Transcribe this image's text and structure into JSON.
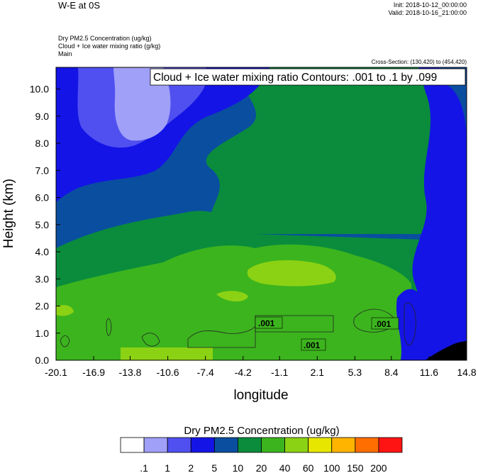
{
  "header": {
    "title": "W-E at 0S",
    "init": "Init: 2018-10-12_00:00:00",
    "valid": "Valid: 2018-10-16_21:00:00",
    "field1": "Dry PM2.5 Concentration   (ug/kg)",
    "field2": "Cloud + Ice water mixing ratio   (g/kg)",
    "field3": "Main",
    "cross_section": "Cross-Section: (130,420) to (454,420)"
  },
  "chart_data": {
    "type": "heatmap",
    "title": "W-E at 0S",
    "xlabel": "longitude",
    "ylabel": "Height (km)",
    "x_ticks": [
      "-20.1",
      "-16.9",
      "-13.8",
      "-10.6",
      "-7.4",
      "-4.2",
      "-1.1",
      "2.1",
      "5.3",
      "8.4",
      "11.6",
      "14.8"
    ],
    "y_ticks": [
      "0.0",
      "1.0",
      "2.0",
      "3.0",
      "4.0",
      "5.0",
      "6.0",
      "7.0",
      "8.0",
      "9.0",
      "10.0"
    ],
    "xlim": [
      -20.1,
      14.8
    ],
    "ylim": [
      0,
      10.8
    ],
    "contour_title": "Cloud + Ice water mixing ratio Contours: .001 to .1 by .099",
    "contour_labels": [
      ".001",
      ".001",
      ".001"
    ],
    "colorbar_title": "Dry PM2.5 Concentration  (ug/kg)",
    "colorbar_levels": [
      ".1",
      "1",
      "2",
      "5",
      "10",
      "20",
      "40",
      "60",
      "100",
      "150",
      "200"
    ],
    "colorbar_colors": [
      "#ffffff",
      "#a0a0f8",
      "#5050f0",
      "#1414e6",
      "#0a4ea0",
      "#0a8c3c",
      "#3cb41e",
      "#8cd214",
      "#e6e600",
      "#ffb400",
      "#ff6e00",
      "#ff1414"
    ]
  }
}
